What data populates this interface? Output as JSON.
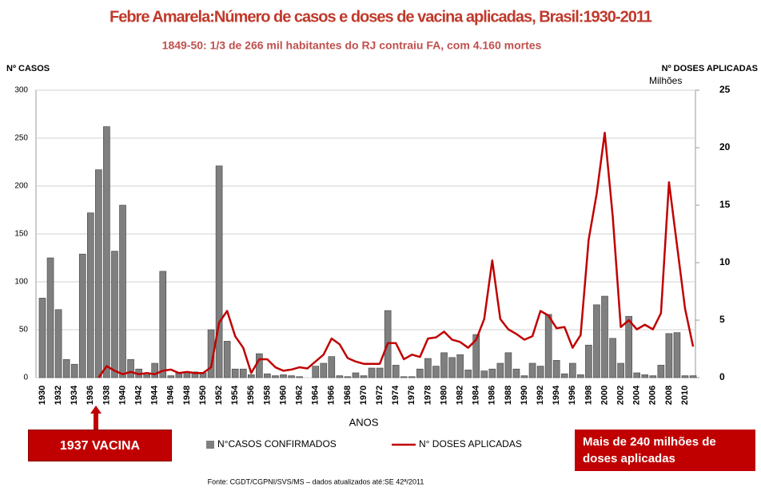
{
  "chart_data": {
    "type": "bar",
    "title": "Febre Amarela:Número de casos e doses de vacina aplicadas, Brasil:1930-2011",
    "subtitle": "1849-50: 1/3 de  266 mil habitantes do RJ contraiu FA, com 4.160 mortes",
    "ylabel": "Nº CASOS",
    "y2label": "Nº DOSES APLICADAS",
    "y2unit": "Milhões",
    "xlabel": "ANOS",
    "annotations": [
      "1937 VACINA",
      "Mais de 240 milhões de doses aplicadas"
    ],
    "source": "Fonte: CGDT/CGPNI/SVS/MS – dados atualizados até:SE 42ª/2011",
    "categories": [
      "1930",
      null,
      "1932",
      null,
      "1934",
      null,
      "1936",
      null,
      "1938",
      null,
      "1940",
      null,
      "1942",
      null,
      "1944",
      null,
      "1946",
      null,
      "1948",
      null,
      "1950",
      null,
      "1952",
      null,
      "1954",
      null,
      "1956",
      null,
      "1958",
      null,
      "1960",
      null,
      "1962",
      null,
      "1964",
      null,
      "1966",
      null,
      "1968",
      null,
      "1970",
      null,
      "1972",
      null,
      "1974",
      null,
      "1976",
      null,
      "1978",
      null,
      "1980",
      null,
      "1982",
      null,
      "1984",
      null,
      "1986",
      null,
      "1988",
      null,
      "1990",
      null,
      "1992",
      null,
      "1994",
      null,
      "1996",
      null,
      "1998",
      null,
      "2000",
      null,
      "2002",
      null,
      "2004",
      null,
      "2006",
      null,
      "2008",
      null,
      "2010",
      null
    ],
    "series": [
      {
        "name": "N°CASOS CONFIRMADOS",
        "type": "bar",
        "color": "#7f7f7f",
        "values": [
          83,
          125,
          71,
          19,
          14,
          129,
          172,
          217,
          262,
          132,
          180,
          19,
          9,
          3,
          15,
          111,
          2,
          5,
          6,
          6,
          5,
          50,
          221,
          38,
          9,
          9,
          3,
          25,
          4,
          2,
          3,
          2,
          1,
          0,
          12,
          15,
          22,
          2,
          1,
          5,
          2,
          10,
          10,
          70,
          13,
          1,
          1,
          9,
          20,
          12,
          26,
          21,
          24,
          8,
          45,
          7,
          9,
          15,
          26,
          9,
          2,
          15,
          12,
          66,
          18,
          4,
          15,
          3,
          34,
          76,
          85,
          41,
          15,
          64,
          5,
          3,
          2,
          13,
          46,
          47,
          2,
          2
        ]
      },
      {
        "name": "N° DOSES APLICADAS",
        "type": "line",
        "color": "#c00000",
        "axis": "y2",
        "values": [
          null,
          null,
          null,
          null,
          null,
          null,
          null,
          0,
          1.0,
          0.6,
          0.3,
          0.5,
          0.3,
          0.4,
          0.3,
          0.6,
          0.7,
          0.4,
          0.5,
          0.4,
          0.4,
          0.9,
          4.8,
          5.8,
          3.6,
          2.6,
          0.4,
          1.6,
          1.6,
          0.9,
          0.6,
          0.7,
          0.9,
          0.8,
          1.4,
          2.0,
          3.4,
          2.9,
          1.7,
          1.4,
          1.2,
          1.2,
          1.2,
          3.0,
          3.0,
          1.6,
          2.0,
          1.8,
          3.4,
          3.5,
          4.0,
          3.3,
          3.1,
          2.6,
          3.3,
          5.1,
          10.2,
          5.1,
          4.2,
          3.8,
          3.3,
          3.6,
          5.8,
          5.4,
          4.3,
          4.4,
          2.6,
          3.7,
          12.0,
          16.0,
          21.3,
          14.0,
          4.4,
          5.0,
          4.2,
          4.6,
          4.2,
          5.6,
          17.0,
          11.5,
          6.0,
          2.7
        ]
      }
    ],
    "ylim": [
      0,
      300
    ],
    "yticks": [
      0,
      50,
      100,
      150,
      200,
      250,
      300
    ],
    "y2lim": [
      0,
      25
    ],
    "y2ticks": [
      0,
      5,
      10,
      15,
      20,
      25
    ],
    "grid": true
  }
}
